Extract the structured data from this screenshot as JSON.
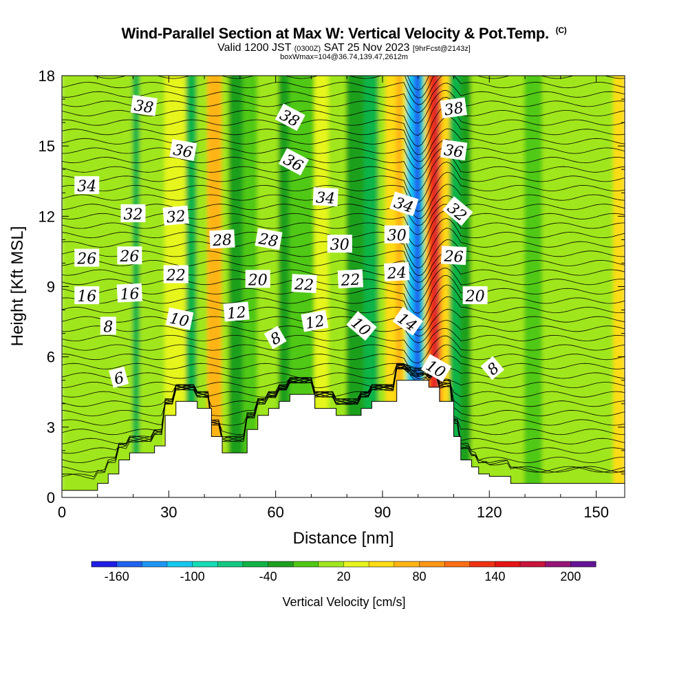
{
  "header": {
    "title": "Wind-Parallel Section at Max W: Vertical Velocity & Pot.Temp.",
    "copyright": "(C)",
    "valid_prefix": "Valid 1200 JST",
    "valid_utc": "(0300Z)",
    "valid_date": "SAT 25 Nov 2023",
    "forecast": "[9hrFcst@2143z]",
    "box_info": "boxWmax=104@36.74,139.47,2612m"
  },
  "colors": {
    "scale": [
      "#1e1ee6",
      "#1e64f0",
      "#1e96f5",
      "#14c8f0",
      "#14dcb4",
      "#14c882",
      "#10b446",
      "#1ea01e",
      "#50c814",
      "#a0e61e",
      "#e6f51e",
      "#ffdc14",
      "#ffb414",
      "#ff9614",
      "#ff6e14",
      "#f03214",
      "#e61414",
      "#c8143c",
      "#961478",
      "#641496"
    ],
    "terrain": "#ffffff",
    "contour": "#000000"
  },
  "chart_data": {
    "type": "heatmap",
    "xlabel": "Distance [nm]",
    "ylabel": "Height [Kft MSL]",
    "xlim": [
      0,
      158
    ],
    "ylim": [
      0,
      18
    ],
    "x_ticks": [
      "0",
      "30",
      "60",
      "90",
      "120",
      "150"
    ],
    "y_ticks": [
      "0",
      "3",
      "6",
      "9",
      "12",
      "15",
      "18"
    ],
    "colorbar": {
      "label": "Vertical Velocity [cm/s]",
      "tick_labels": [
        "-160",
        "-100",
        "-40",
        "20",
        "80",
        "140",
        "200"
      ],
      "range": [
        -180,
        220
      ]
    },
    "terrain_profile": [
      [
        0,
        0.3
      ],
      [
        10,
        0.3
      ],
      [
        10,
        0.6
      ],
      [
        13,
        0.6
      ],
      [
        13,
        1.0
      ],
      [
        16,
        1.0
      ],
      [
        16,
        1.6
      ],
      [
        19,
        1.6
      ],
      [
        19,
        1.9
      ],
      [
        26,
        1.9
      ],
      [
        26,
        2.2
      ],
      [
        29,
        2.2
      ],
      [
        29,
        3.5
      ],
      [
        32,
        3.5
      ],
      [
        32,
        4.1
      ],
      [
        38,
        4.1
      ],
      [
        38,
        3.8
      ],
      [
        42,
        3.8
      ],
      [
        42,
        2.6
      ],
      [
        45,
        2.6
      ],
      [
        45,
        1.9
      ],
      [
        52,
        1.9
      ],
      [
        52,
        2.9
      ],
      [
        55,
        2.9
      ],
      [
        55,
        3.5
      ],
      [
        58,
        3.5
      ],
      [
        58,
        3.8
      ],
      [
        61,
        3.8
      ],
      [
        61,
        4.1
      ],
      [
        64,
        4.1
      ],
      [
        64,
        4.4
      ],
      [
        71,
        4.4
      ],
      [
        71,
        3.8
      ],
      [
        77,
        3.8
      ],
      [
        77,
        3.5
      ],
      [
        84,
        3.5
      ],
      [
        84,
        3.8
      ],
      [
        87,
        3.8
      ],
      [
        87,
        4.1
      ],
      [
        94,
        4.1
      ],
      [
        94,
        5.0
      ],
      [
        103,
        5.0
      ],
      [
        103,
        4.7
      ],
      [
        106,
        4.7
      ],
      [
        106,
        4.1
      ],
      [
        110,
        4.1
      ],
      [
        110,
        2.6
      ],
      [
        112,
        2.6
      ],
      [
        112,
        1.6
      ],
      [
        115,
        1.6
      ],
      [
        115,
        1.3
      ],
      [
        117,
        1.3
      ],
      [
        117,
        1.0
      ],
      [
        120,
        1.0
      ],
      [
        120,
        0.9
      ],
      [
        126,
        0.9
      ],
      [
        126,
        0.6
      ],
      [
        158,
        0.6
      ]
    ],
    "w_columns": [
      {
        "x": [
          0,
          20
        ],
        "w": 0
      },
      {
        "x": [
          20,
          22
        ],
        "w": -50
      },
      {
        "x": [
          22,
          29
        ],
        "w": 0
      },
      {
        "x": [
          29,
          35
        ],
        "w": 20
      },
      {
        "x": [
          35,
          38
        ],
        "w": -50
      },
      {
        "x": [
          38,
          41
        ],
        "w": 10
      },
      {
        "x": [
          41,
          45
        ],
        "w": 60
      },
      {
        "x": [
          45,
          47
        ],
        "w": 10
      },
      {
        "x": [
          47,
          51
        ],
        "w": -40
      },
      {
        "x": [
          51,
          55
        ],
        "w": -10
      },
      {
        "x": [
          55,
          61
        ],
        "w": 10
      },
      {
        "x": [
          61,
          64
        ],
        "w": -40
      },
      {
        "x": [
          64,
          71
        ],
        "w": -20
      },
      {
        "x": [
          71,
          75
        ],
        "w": 30
      },
      {
        "x": [
          75,
          80
        ],
        "w": 10
      },
      {
        "x": [
          80,
          85
        ],
        "w": -40
      },
      {
        "x": [
          85,
          89
        ],
        "w": -60
      },
      {
        "x": [
          89,
          91
        ],
        "w": 0
      },
      {
        "x": [
          91,
          94
        ],
        "w": 40
      },
      {
        "x": [
          94,
          96
        ],
        "w": 60
      },
      {
        "x": [
          96,
          97
        ],
        "w": 30
      },
      {
        "x": [
          97,
          99
        ],
        "w": -110
      },
      {
        "x": [
          99,
          101
        ],
        "w": -160
      },
      {
        "x": [
          101,
          102
        ],
        "w": -100
      },
      {
        "x": [
          102,
          103
        ],
        "w": 50
      },
      {
        "x": [
          103,
          105
        ],
        "w": 120
      },
      {
        "x": [
          105,
          106
        ],
        "w": 160
      },
      {
        "x": [
          106,
          107
        ],
        "w": 90
      },
      {
        "x": [
          107,
          109
        ],
        "w": 40
      },
      {
        "x": [
          109,
          112
        ],
        "w": -60
      },
      {
        "x": [
          112,
          115
        ],
        "w": -30
      },
      {
        "x": [
          115,
          130
        ],
        "w": 0
      },
      {
        "x": [
          130,
          135
        ],
        "w": -20
      },
      {
        "x": [
          135,
          145
        ],
        "w": 0
      },
      {
        "x": [
          145,
          155
        ],
        "w": 10
      },
      {
        "x": [
          155,
          158
        ],
        "w": 40
      }
    ],
    "theta_contour_labels": [
      {
        "text": "38",
        "x": 23,
        "y": 16.7,
        "angle": 8
      },
      {
        "text": "38",
        "x": 64,
        "y": 16.2,
        "angle": 28
      },
      {
        "text": "38",
        "x": 110,
        "y": 16.6,
        "angle": -8
      },
      {
        "text": "36",
        "x": 34,
        "y": 14.8,
        "angle": 10
      },
      {
        "text": "36",
        "x": 65,
        "y": 14.3,
        "angle": 28
      },
      {
        "text": "36",
        "x": 110,
        "y": 14.8,
        "angle": 8
      },
      {
        "text": "34",
        "x": 7,
        "y": 13.3,
        "angle": 0
      },
      {
        "text": "34",
        "x": 74,
        "y": 12.8,
        "angle": 3
      },
      {
        "text": "34",
        "x": 96,
        "y": 12.5,
        "angle": 18
      },
      {
        "text": "32",
        "x": 20,
        "y": 12.1,
        "angle": 0
      },
      {
        "text": "32",
        "x": 32,
        "y": 12.0,
        "angle": -5
      },
      {
        "text": "32",
        "x": 111,
        "y": 12.2,
        "angle": 40
      },
      {
        "text": "30",
        "x": 78,
        "y": 10.8,
        "angle": 0
      },
      {
        "text": "30",
        "x": 94,
        "y": 11.2,
        "angle": 0
      },
      {
        "text": "28",
        "x": 45,
        "y": 11.0,
        "angle": -3
      },
      {
        "text": "28",
        "x": 58,
        "y": 11.0,
        "angle": 10
      },
      {
        "text": "26",
        "x": 7,
        "y": 10.2,
        "angle": 0
      },
      {
        "text": "26",
        "x": 19,
        "y": 10.3,
        "angle": 0
      },
      {
        "text": "26",
        "x": 110,
        "y": 10.3,
        "angle": 3
      },
      {
        "text": "24",
        "x": 94,
        "y": 9.6,
        "angle": -3
      },
      {
        "text": "22",
        "x": 32,
        "y": 9.5,
        "angle": 0
      },
      {
        "text": "22",
        "x": 68,
        "y": 9.1,
        "angle": 3
      },
      {
        "text": "22",
        "x": 81,
        "y": 9.3,
        "angle": -3
      },
      {
        "text": "20",
        "x": 55,
        "y": 9.3,
        "angle": 0
      },
      {
        "text": "20",
        "x": 116,
        "y": 8.6,
        "angle": 0
      },
      {
        "text": "16",
        "x": 7,
        "y": 8.6,
        "angle": 0
      },
      {
        "text": "16",
        "x": 19,
        "y": 8.7,
        "angle": -3
      },
      {
        "text": "14",
        "x": 97,
        "y": 7.5,
        "angle": 35
      },
      {
        "text": "12",
        "x": 49,
        "y": 7.9,
        "angle": -5
      },
      {
        "text": "12",
        "x": 71,
        "y": 7.5,
        "angle": -10
      },
      {
        "text": "10",
        "x": 33,
        "y": 7.6,
        "angle": 12
      },
      {
        "text": "10",
        "x": 84,
        "y": 7.3,
        "angle": 40
      },
      {
        "text": "10",
        "x": 105,
        "y": 5.5,
        "angle": 30
      },
      {
        "text": "8",
        "x": 13,
        "y": 7.3,
        "angle": 0
      },
      {
        "text": "8",
        "x": 60,
        "y": 6.8,
        "angle": -30
      },
      {
        "text": "8",
        "x": 121,
        "y": 5.5,
        "angle": -40
      },
      {
        "text": "6",
        "x": 16,
        "y": 5.1,
        "angle": -15
      }
    ]
  }
}
